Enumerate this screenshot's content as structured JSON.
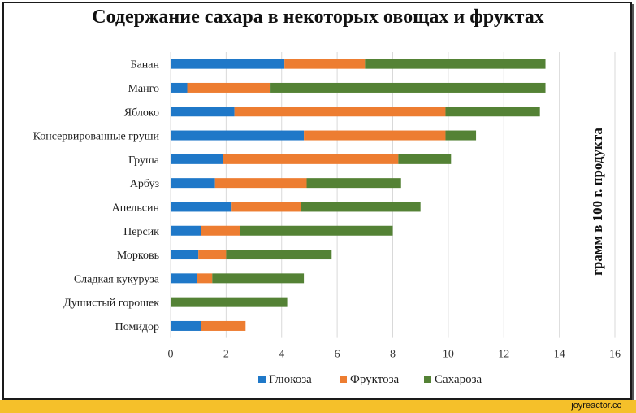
{
  "chart_data": {
    "type": "bar",
    "orientation": "horizontal",
    "stacked": true,
    "title": "Содержание сахара в некоторых овощах и фруктах",
    "ylabel": "грамм в 100 г. продукта",
    "categories": [
      "Банан",
      "Манго",
      "Яблоко",
      "Консервированные груши",
      "Груша",
      "Арбуз",
      "Апельсин",
      "Персик",
      "Морковь",
      "Сладкая кукуруза",
      "Душистый горошек",
      "Помидор"
    ],
    "series": [
      {
        "name": "Глюкоза",
        "color": "#1f78c8",
        "values": [
          4.1,
          0.6,
          2.3,
          4.8,
          1.9,
          1.6,
          2.2,
          1.1,
          1.0,
          0.95,
          0,
          1.1
        ]
      },
      {
        "name": "Фруктоза",
        "color": "#ed7d31",
        "values": [
          2.9,
          3.0,
          7.6,
          5.1,
          6.3,
          3.3,
          2.5,
          1.4,
          1.0,
          0.55,
          0,
          1.6
        ]
      },
      {
        "name": "Сахароза",
        "color": "#548235",
        "values": [
          6.5,
          9.9,
          3.4,
          1.1,
          1.9,
          3.4,
          4.3,
          5.5,
          3.8,
          3.3,
          4.2,
          0
        ]
      }
    ],
    "xlim": [
      0,
      16
    ],
    "xticks": [
      0,
      2,
      4,
      6,
      8,
      10,
      12,
      14,
      16
    ],
    "grid": true,
    "legend_position": "bottom"
  },
  "footer": {
    "site": "joyreactor.cc"
  }
}
